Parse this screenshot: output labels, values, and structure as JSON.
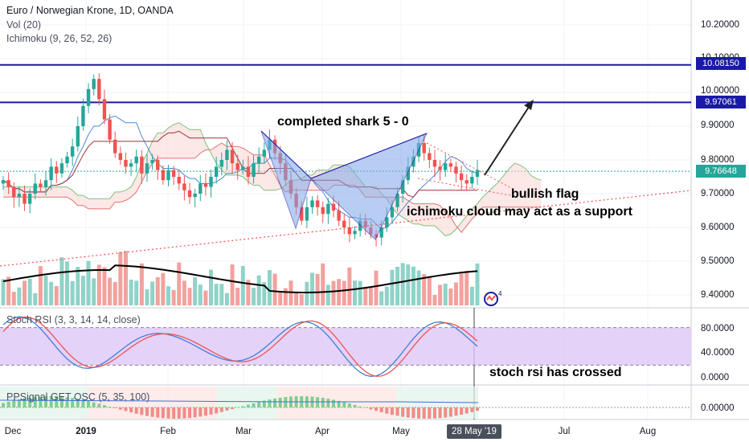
{
  "header": {
    "symbol_title": "Euro / Norwegian Krone, 1D, OANDA",
    "indicator_vol": "Vol (20)",
    "indicator_ichimoku": "Ichimoku (9, 26, 52, 26)"
  },
  "annotations": {
    "shark": "completed shark 5 - 0",
    "flag": "bullish flag",
    "cloud": "ichimoku cloud may act as a support",
    "stoch": "stoch rsi has crossed"
  },
  "price_axis": {
    "ticks": [
      "10.20000",
      "10.10000",
      "10.00000",
      "9.90000",
      "9.80000",
      "9.70000",
      "9.60000",
      "9.50000",
      "9.40000"
    ],
    "tick_values": [
      10.2,
      10.1,
      10.0,
      9.9,
      9.8,
      9.7,
      9.6,
      9.5,
      9.4
    ],
    "current_price": "9.76648",
    "resistance_1": "10.08150",
    "resistance_2": "9.97061"
  },
  "stoch_panel": {
    "title": "Stoch RSI (3, 3, 14, 14, close)",
    "ticks": [
      "80.0000",
      "40.0000",
      "0.0000"
    ],
    "tick_values": [
      80,
      40,
      0
    ]
  },
  "osc_panel": {
    "title": "PPSignal GET OSC (5, 35, 100)",
    "ticks": [
      "0.00000"
    ]
  },
  "date_axis": {
    "labels": [
      "Dec",
      "2019",
      "Feb",
      "Mar",
      "Apr",
      "May",
      "Jun",
      "Jul",
      "Aug"
    ],
    "cursor_date": "28 May '19"
  },
  "logo_badge": "4",
  "colors": {
    "bull": "#26a69a",
    "bear": "#ef5350",
    "horizontal_line": "#1a1aa6",
    "pattern_fill": "#7fa6e8",
    "stoch_band": "#dfc7f7",
    "current_price_green": "#26a69a"
  },
  "chart_data": {
    "type": "candlestick",
    "y_range": [
      9.36,
      10.27
    ],
    "horizontal_levels": [
      10.0815,
      9.97061
    ],
    "current_price": 9.76648,
    "close_series": [
      9.74,
      9.72,
      9.69,
      9.7,
      9.67,
      9.7,
      9.73,
      9.72,
      9.74,
      9.78,
      9.76,
      9.79,
      9.81,
      9.84,
      9.9,
      9.96,
      10.01,
      10.04,
      9.98,
      9.92,
      9.86,
      9.82,
      9.8,
      9.78,
      9.79,
      9.81,
      9.76,
      9.79,
      9.8,
      9.77,
      9.74,
      9.77,
      9.75,
      9.73,
      9.71,
      9.69,
      9.7,
      9.73,
      9.72,
      9.75,
      9.78,
      9.8,
      9.83,
      9.79,
      9.77,
      9.78,
      9.75,
      9.79,
      9.81,
      9.83,
      9.86,
      9.82,
      9.79,
      9.74,
      9.7,
      9.66,
      9.62,
      9.66,
      9.68,
      9.66,
      9.64,
      9.67,
      9.65,
      9.62,
      9.6,
      9.58,
      9.59,
      9.62,
      9.6,
      9.58,
      9.57,
      9.6,
      9.63,
      9.66,
      9.7,
      9.74,
      9.78,
      9.81,
      9.85,
      9.82,
      9.8,
      9.78,
      9.77,
      9.79,
      9.78,
      9.76,
      9.74,
      9.73,
      9.75,
      9.77
    ]
  }
}
